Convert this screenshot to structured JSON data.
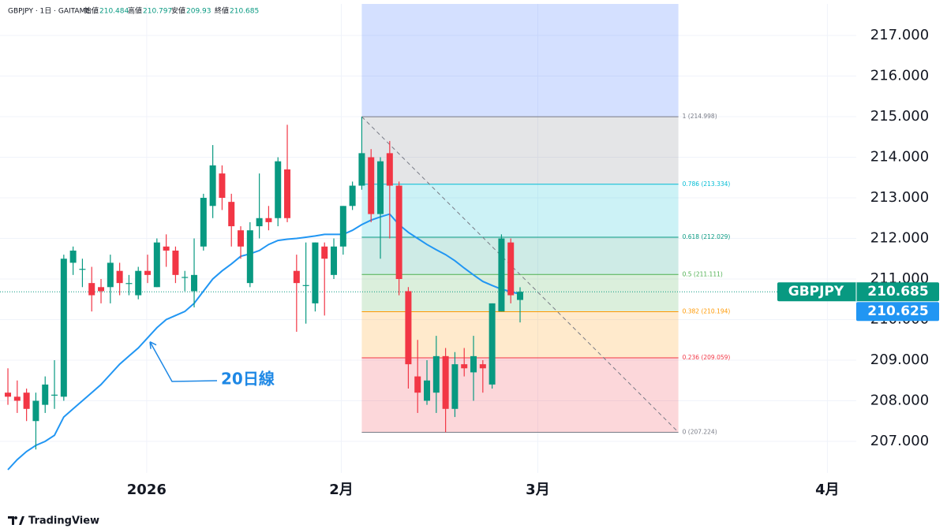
{
  "chart_data": {
    "type": "candlestick",
    "symbol_line": "GBPJPY · 1日 · GAITAME",
    "ohlc_names": [
      "始値",
      "高値",
      "安値",
      "終値"
    ],
    "x": [
      0,
      1,
      2,
      3,
      4,
      5,
      6,
      7,
      8,
      9,
      10,
      11,
      12,
      13,
      14,
      15,
      16,
      17,
      18,
      19,
      20,
      21,
      22,
      23,
      24,
      25,
      26,
      27,
      28,
      29,
      30,
      31,
      32,
      33,
      34,
      35,
      36,
      37,
      38,
      39,
      40,
      41,
      42,
      43,
      44,
      45,
      46,
      47,
      48,
      49,
      50,
      51,
      52,
      53,
      54,
      55
    ],
    "open": [
      208.2,
      208.1,
      208.2,
      207.5,
      207.9,
      208.15,
      208.1,
      211.4,
      211.25,
      210.9,
      210.8,
      210.8,
      211.2,
      210.9,
      210.6,
      211.2,
      210.8,
      211.8,
      211.7,
      211.05,
      210.7,
      211.8,
      212.8,
      213.6,
      212.9,
      212.2,
      210.9,
      212.3,
      212.5,
      212.5,
      213.7,
      211.2,
      210.85,
      210.4,
      211.8,
      211.1,
      211.8,
      212.8,
      213.3,
      214.0,
      212.6,
      214.1,
      213.3,
      210.7,
      208.6,
      208.0,
      208.2,
      209.1,
      207.8,
      208.9,
      208.7,
      208.9,
      208.4,
      210.2,
      211.9,
      210.484
    ],
    "high": [
      208.8,
      208.5,
      208.3,
      208.2,
      208.6,
      209.0,
      211.6,
      211.8,
      211.5,
      211.3,
      211.0,
      211.6,
      211.4,
      211.1,
      211.3,
      211.6,
      212.0,
      212.1,
      211.8,
      211.2,
      212.0,
      213.1,
      214.3,
      213.8,
      213.1,
      212.3,
      212.4,
      213.6,
      212.8,
      214.0,
      214.8,
      211.6,
      211.9,
      211.9,
      211.9,
      212.0,
      212.8,
      213.4,
      214.998,
      214.2,
      214.0,
      214.4,
      213.4,
      210.8,
      209.5,
      209.0,
      209.6,
      209.3,
      209.2,
      209.3,
      209.6,
      209.0,
      210.4,
      212.1,
      212.0,
      210.797
    ],
    "low": [
      207.9,
      207.7,
      207.5,
      206.8,
      207.7,
      207.8,
      208.0,
      211.1,
      210.8,
      210.2,
      210.4,
      210.4,
      210.6,
      210.6,
      210.5,
      210.9,
      210.8,
      211.3,
      210.9,
      210.7,
      210.3,
      211.7,
      212.5,
      212.7,
      211.8,
      211.5,
      210.8,
      212.0,
      212.2,
      212.3,
      212.4,
      209.7,
      209.9,
      210.2,
      210.1,
      211.0,
      211.6,
      212.7,
      213.2,
      212.4,
      211.5,
      212.0,
      210.6,
      208.3,
      207.7,
      207.9,
      207.7,
      207.224,
      207.6,
      208.6,
      208.0,
      208.2,
      208.3,
      210.2,
      210.4,
      209.93
    ],
    "close": [
      208.1,
      208.0,
      207.8,
      208.0,
      208.4,
      208.15,
      211.5,
      211.7,
      211.25,
      210.6,
      210.7,
      211.4,
      210.9,
      210.9,
      211.2,
      211.1,
      211.9,
      211.7,
      211.1,
      211.05,
      211.1,
      213.0,
      213.8,
      213.0,
      212.3,
      211.8,
      212.2,
      212.5,
      212.4,
      213.9,
      212.5,
      210.9,
      210.85,
      211.9,
      211.5,
      211.8,
      212.8,
      213.3,
      214.1,
      212.6,
      213.9,
      213.3,
      211.0,
      208.9,
      208.2,
      208.5,
      209.1,
      207.8,
      208.9,
      208.8,
      209.1,
      208.8,
      210.4,
      212.0,
      210.6,
      210.685
    ],
    "up_color": "#089981",
    "down_color": "#f23645",
    "series": [
      {
        "name": "20日線",
        "color": "#2196f3",
        "values": [
          206.3,
          206.55,
          206.75,
          206.9,
          207.0,
          207.15,
          207.6,
          207.8,
          208.0,
          208.2,
          208.4,
          208.65,
          208.9,
          209.1,
          209.3,
          209.55,
          209.8,
          210.0,
          210.1,
          210.2,
          210.4,
          210.7,
          211.0,
          211.2,
          211.37,
          211.56,
          211.62,
          211.7,
          211.85,
          211.95,
          211.98,
          212.0,
          212.03,
          212.06,
          212.1,
          212.1,
          212.1,
          212.2,
          212.34,
          212.45,
          212.53,
          212.6,
          212.34,
          212.15,
          212.0,
          211.85,
          211.72,
          211.6,
          211.45,
          211.27,
          211.1,
          210.94,
          210.84,
          210.75,
          210.69,
          210.625
        ]
      }
    ],
    "price_tag_name": "GBPJPY",
    "fib": {
      "x": [
        38,
        72
      ],
      "extension_color": "#2962ff",
      "levels": [
        {
          "label": "1 (214.998)",
          "value": 214.998,
          "color": "#787b86"
        },
        {
          "label": "0.786 (213.334)",
          "value": 213.334,
          "color": "#00bcd4"
        },
        {
          "label": "0.618 (212.029)",
          "value": 212.029,
          "color": "#089981"
        },
        {
          "label": "0.5 (211.111)",
          "value": 211.111,
          "color": "#4caf50"
        },
        {
          "label": "0.382 (210.194)",
          "value": 210.194,
          "color": "#ff9800"
        },
        {
          "label": "0.236 (209.059)",
          "value": 209.059,
          "color": "#f23645"
        },
        {
          "label": "0 (207.224)",
          "value": 207.224,
          "color": "#787b86"
        }
      ]
    },
    "annotation": "20日線",
    "xlim": [
      -0.85,
      91.1
    ],
    "xticks": [
      {
        "value": 14.9,
        "label": "2026"
      },
      {
        "value": 35.8,
        "label": "2月"
      },
      {
        "value": 56.9,
        "label": "3月"
      },
      {
        "value": 88,
        "label": "4月"
      }
    ],
    "ylim": [
      206.223,
      217.777
    ],
    "yticks": [
      {
        "value": 207,
        "label": "207.000"
      },
      {
        "value": 208,
        "label": "208.000"
      },
      {
        "value": 209,
        "label": "209.000"
      },
      {
        "value": 210,
        "label": "210.000"
      },
      {
        "value": 211,
        "label": "211.000"
      },
      {
        "value": 212,
        "label": "212.000"
      },
      {
        "value": 213,
        "label": "213.000"
      },
      {
        "value": 214,
        "label": "214.000"
      },
      {
        "value": 215,
        "label": "215.000"
      },
      {
        "value": 216,
        "label": "216.000"
      },
      {
        "value": 217,
        "label": "217.000"
      }
    ],
    "grid": true,
    "footer": "TradingView"
  }
}
